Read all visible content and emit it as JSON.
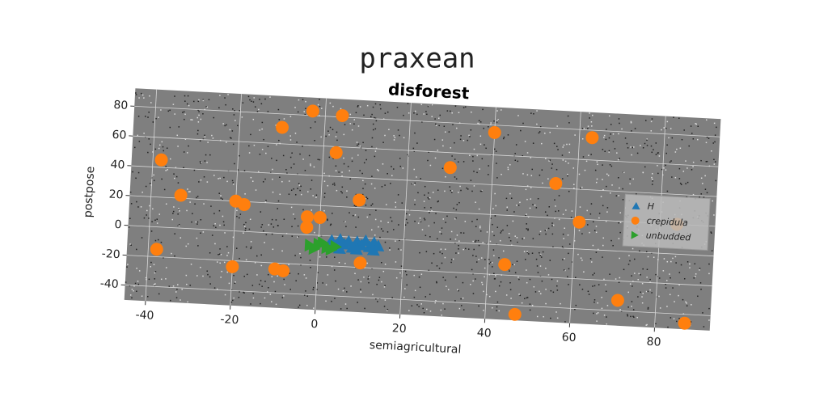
{
  "chart_data": {
    "type": "scatter",
    "suptitle": "praxean",
    "title": "disforest",
    "x_label": "semiagricultural",
    "y_label": "postpose",
    "xlim": [
      -45,
      93
    ],
    "ylim": [
      -50,
      92
    ],
    "xticks": [
      -40,
      -20,
      0,
      20,
      40,
      60,
      80
    ],
    "yticks": [
      -40,
      -20,
      0,
      20,
      40,
      60,
      80
    ],
    "grid": true,
    "legend": "center right",
    "series": [
      {
        "name": "H",
        "color": "#1f77b4",
        "marker": "triangle-up",
        "x": [
          3,
          4,
          5,
          6,
          7,
          8,
          9,
          10,
          11,
          12,
          13,
          14,
          5,
          9,
          13
        ],
        "values": [
          -3,
          -6,
          -2,
          -5,
          -3,
          -7,
          -3,
          -5,
          -2,
          -6,
          -3,
          -5,
          -8,
          -8,
          -8
        ]
      },
      {
        "name": "crepidula",
        "color": "#ff7f0e",
        "marker": "circle",
        "x": [
          -38,
          -33,
          -38,
          -20,
          -18,
          -20,
          -10,
          -8,
          -10,
          -3,
          4,
          3,
          9,
          10,
          -3,
          0,
          -3,
          30,
          40,
          44,
          47,
          55,
          61,
          63,
          71,
          84,
          87
        ],
        "values": [
          45,
          22,
          -15,
          20,
          18,
          -24,
          -24,
          -25,
          71,
          83,
          81,
          56,
          25,
          -17,
          12,
          12,
          5,
          50,
          75,
          -13,
          -46,
          43,
          18,
          75,
          -33,
          20,
          -46
        ]
      },
      {
        "name": "unbudded",
        "color": "#2ca02c",
        "marker": "triangle-right",
        "x": [
          -2,
          0,
          2,
          4,
          -1,
          1,
          3
        ],
        "values": [
          -7,
          -6,
          -8,
          -7,
          -9,
          -5,
          -9
        ]
      }
    ]
  }
}
